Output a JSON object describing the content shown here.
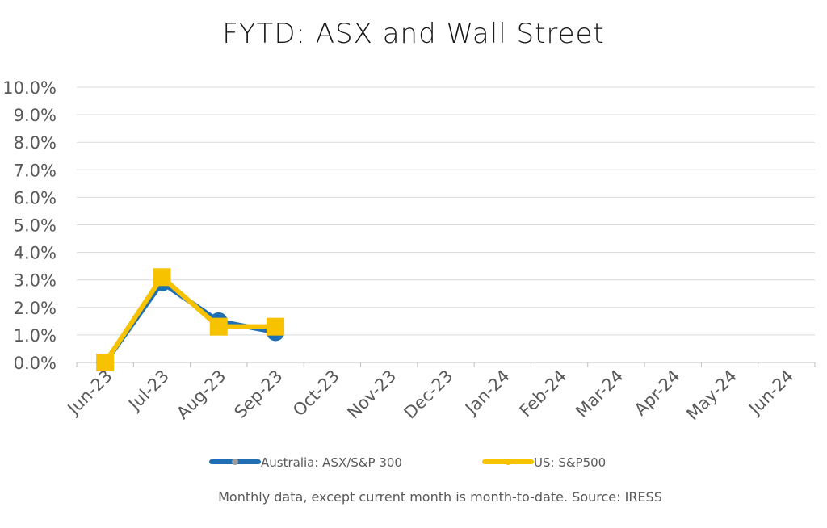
{
  "chart_data": {
    "type": "line",
    "title": "FYTD: ASX and Wall Street",
    "categories": [
      "Jun-23",
      "Jul-23",
      "Aug-23",
      "Sep-23",
      "Oct-23",
      "Nov-23",
      "Dec-23",
      "Jan-24",
      "Feb-24",
      "Mar-24",
      "Apr-24",
      "May-24",
      "Jun-24"
    ],
    "y_ticks": [
      "0.0%",
      "1.0%",
      "2.0%",
      "3.0%",
      "4.0%",
      "5.0%",
      "6.0%",
      "7.0%",
      "8.0%",
      "9.0%",
      "10.0%"
    ],
    "ylim": [
      0,
      10
    ],
    "grid": true,
    "legend_position": "bottom",
    "series": [
      {
        "name": "Australia: ASX/S&P 300",
        "color": "#1f6fb5",
        "marker": "circle",
        "values": [
          0.0,
          2.9,
          1.5,
          1.1,
          null,
          null,
          null,
          null,
          null,
          null,
          null,
          null,
          null
        ]
      },
      {
        "name": "US: S&P500",
        "color": "#f7c200",
        "marker": "square",
        "values": [
          0.0,
          3.1,
          1.3,
          1.3,
          null,
          null,
          null,
          null,
          null,
          null,
          null,
          null,
          null
        ]
      }
    ],
    "footnote": "Monthly data, except current month is month-to-date.  Source: IRESS"
  }
}
